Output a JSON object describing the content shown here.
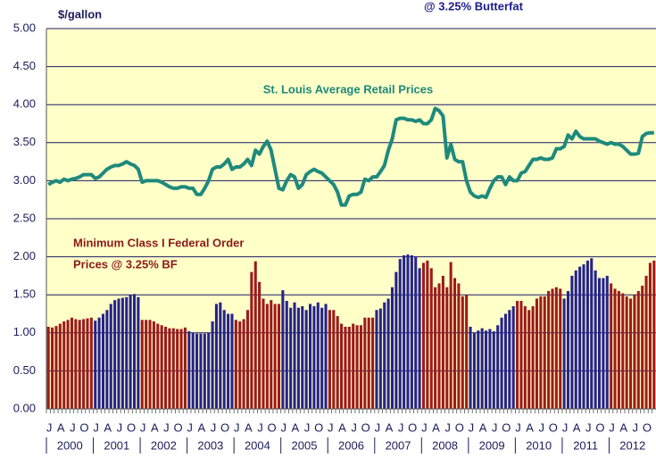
{
  "chart_data": {
    "type": "bar",
    "title": "@ 3.25% Butterfat",
    "y_label": "$/gallon",
    "annotations": [
      "St. Louis Average Retail Prices",
      "Minimum Class I Federal Order",
      "Prices @ 3.25% BF"
    ],
    "categories": [
      "J",
      null,
      null,
      "A",
      null,
      null,
      "J",
      null,
      null,
      "O",
      null,
      null,
      "J",
      null,
      null,
      "A",
      null,
      null,
      "J",
      null,
      null,
      "O",
      null,
      null,
      "J",
      null,
      null,
      "A",
      null,
      null,
      "J",
      null,
      null,
      "O",
      null,
      null,
      "J",
      null,
      null,
      "A",
      null,
      null,
      "J",
      null,
      null,
      "O",
      null,
      null,
      "J",
      null,
      null,
      "A",
      null,
      null,
      "J",
      null,
      null,
      "O",
      null,
      null,
      "J",
      null,
      null,
      "A",
      null,
      null,
      "J",
      null,
      null,
      "O",
      null,
      null,
      "J",
      null,
      null,
      "A",
      null,
      null,
      "J",
      null,
      null,
      "O",
      null,
      null,
      "J",
      null,
      null,
      "A",
      null,
      null,
      "J",
      null,
      null,
      "O",
      null,
      null,
      "J",
      null,
      null,
      "A",
      null,
      null,
      "J",
      null,
      null,
      "O",
      null,
      null,
      "J",
      null,
      null,
      "A",
      null,
      null,
      "J",
      null,
      null,
      "O",
      null,
      null,
      "J",
      null,
      null,
      "A",
      null,
      null,
      "J",
      null,
      null,
      "O",
      null,
      null,
      "J",
      null,
      null,
      "A",
      null,
      null,
      "J",
      null,
      null,
      "O",
      null,
      null,
      "J",
      null,
      null,
      "A",
      null,
      null,
      "J",
      null,
      null,
      "O",
      null,
      null
    ],
    "years": [
      "2000",
      "2001",
      "2002",
      "2003",
      "2004",
      "2005",
      "2006",
      "2007",
      "2008",
      "2009",
      "2010",
      "2011",
      "2012"
    ],
    "ylim": [
      0,
      5
    ],
    "yticks": [
      {
        "value": 0,
        "label": "0.00"
      },
      {
        "value": 0.5,
        "label": "0.50"
      },
      {
        "value": 1,
        "label": "1.00"
      },
      {
        "value": 1.5,
        "label": "1.50"
      },
      {
        "value": 2,
        "label": "2.00"
      },
      {
        "value": 2.5,
        "label": "2.50"
      },
      {
        "value": 3,
        "label": "3.00"
      },
      {
        "value": 3.5,
        "label": "3.50"
      },
      {
        "value": 4,
        "label": "4.00"
      },
      {
        "value": 4.5,
        "label": "4.50"
      },
      {
        "value": 5,
        "label": "5.00"
      }
    ],
    "grid": true,
    "background": "#ffffc8",
    "series": [
      {
        "type": "bar",
        "colors": [
          "#9b1b1b",
          "#25238c"
        ],
        "values": [
          1.08,
          1.07,
          1.09,
          1.12,
          1.15,
          1.17,
          1.2,
          1.18,
          1.17,
          1.18,
          1.19,
          1.2,
          1.16,
          1.2,
          1.25,
          1.3,
          1.38,
          1.43,
          1.45,
          1.46,
          1.47,
          1.5,
          1.51,
          1.47,
          1.17,
          1.17,
          1.17,
          1.15,
          1.12,
          1.1,
          1.08,
          1.06,
          1.06,
          1.05,
          1.05,
          1.07,
          1.02,
          1.0,
          0.99,
          0.99,
          0.99,
          1.0,
          1.15,
          1.38,
          1.4,
          1.3,
          1.25,
          1.25,
          1.17,
          1.15,
          1.18,
          1.3,
          1.8,
          1.94,
          1.67,
          1.45,
          1.38,
          1.43,
          1.38,
          1.38,
          1.56,
          1.42,
          1.33,
          1.4,
          1.33,
          1.35,
          1.3,
          1.38,
          1.35,
          1.4,
          1.33,
          1.38,
          1.3,
          1.3,
          1.22,
          1.12,
          1.08,
          1.08,
          1.12,
          1.1,
          1.1,
          1.2,
          1.2,
          1.2,
          1.3,
          1.32,
          1.4,
          1.45,
          1.6,
          1.8,
          1.97,
          2.02,
          2.03,
          2.02,
          2.0,
          1.85,
          1.92,
          1.95,
          1.85,
          1.6,
          1.65,
          1.75,
          1.6,
          1.93,
          1.72,
          1.65,
          1.48,
          1.5,
          1.08,
          1.0,
          1.03,
          1.06,
          1.03,
          1.05,
          1.02,
          1.1,
          1.2,
          1.25,
          1.3,
          1.35,
          1.42,
          1.42,
          1.35,
          1.3,
          1.35,
          1.45,
          1.48,
          1.48,
          1.55,
          1.58,
          1.6,
          1.58,
          1.45,
          1.55,
          1.75,
          1.82,
          1.87,
          1.9,
          1.95,
          1.98,
          1.82,
          1.72,
          1.72,
          1.75,
          1.65,
          1.58,
          1.55,
          1.52,
          1.48,
          1.45,
          1.5,
          1.55,
          1.62,
          1.75,
          1.92,
          1.95
        ]
      },
      {
        "type": "line",
        "color": "#1e8a7c",
        "values": [
          2.95,
          2.98,
          3.0,
          2.98,
          3.02,
          3.0,
          3.02,
          3.03,
          3.05,
          3.08,
          3.08,
          3.08,
          3.03,
          3.05,
          3.1,
          3.15,
          3.18,
          3.2,
          3.2,
          3.22,
          3.25,
          3.22,
          3.2,
          3.15,
          2.98,
          3.0,
          3.0,
          3.0,
          3.0,
          2.98,
          2.95,
          2.92,
          2.9,
          2.9,
          2.92,
          2.92,
          2.9,
          2.9,
          2.82,
          2.82,
          2.9,
          3.0,
          3.15,
          3.18,
          3.18,
          3.22,
          3.28,
          3.15,
          3.18,
          3.18,
          3.22,
          3.28,
          3.2,
          3.4,
          3.35,
          3.45,
          3.52,
          3.4,
          3.15,
          2.9,
          2.88,
          3.0,
          3.08,
          3.05,
          2.9,
          2.95,
          3.08,
          3.12,
          3.15,
          3.12,
          3.1,
          3.05,
          3.0,
          2.95,
          2.85,
          2.68,
          2.68,
          2.8,
          2.82,
          2.82,
          2.85,
          3.02,
          3.0,
          3.05,
          3.05,
          3.12,
          3.2,
          3.4,
          3.55,
          3.8,
          3.82,
          3.82,
          3.8,
          3.8,
          3.78,
          3.8,
          3.75,
          3.75,
          3.8,
          3.95,
          3.92,
          3.85,
          3.3,
          3.48,
          3.28,
          3.25,
          3.25,
          3.0,
          2.85,
          2.8,
          2.78,
          2.8,
          2.78,
          2.9,
          3.0,
          3.05,
          3.05,
          2.95,
          3.05,
          3.0,
          3.0,
          3.1,
          3.12,
          3.2,
          3.28,
          3.28,
          3.3,
          3.28,
          3.28,
          3.3,
          3.42,
          3.42,
          3.45,
          3.6,
          3.55,
          3.65,
          3.58,
          3.55,
          3.55,
          3.55,
          3.55,
          3.52,
          3.5,
          3.48,
          3.5,
          3.48,
          3.48,
          3.45,
          3.4,
          3.35,
          3.35,
          3.36,
          3.58,
          3.62,
          3.63,
          3.63
        ]
      }
    ]
  }
}
